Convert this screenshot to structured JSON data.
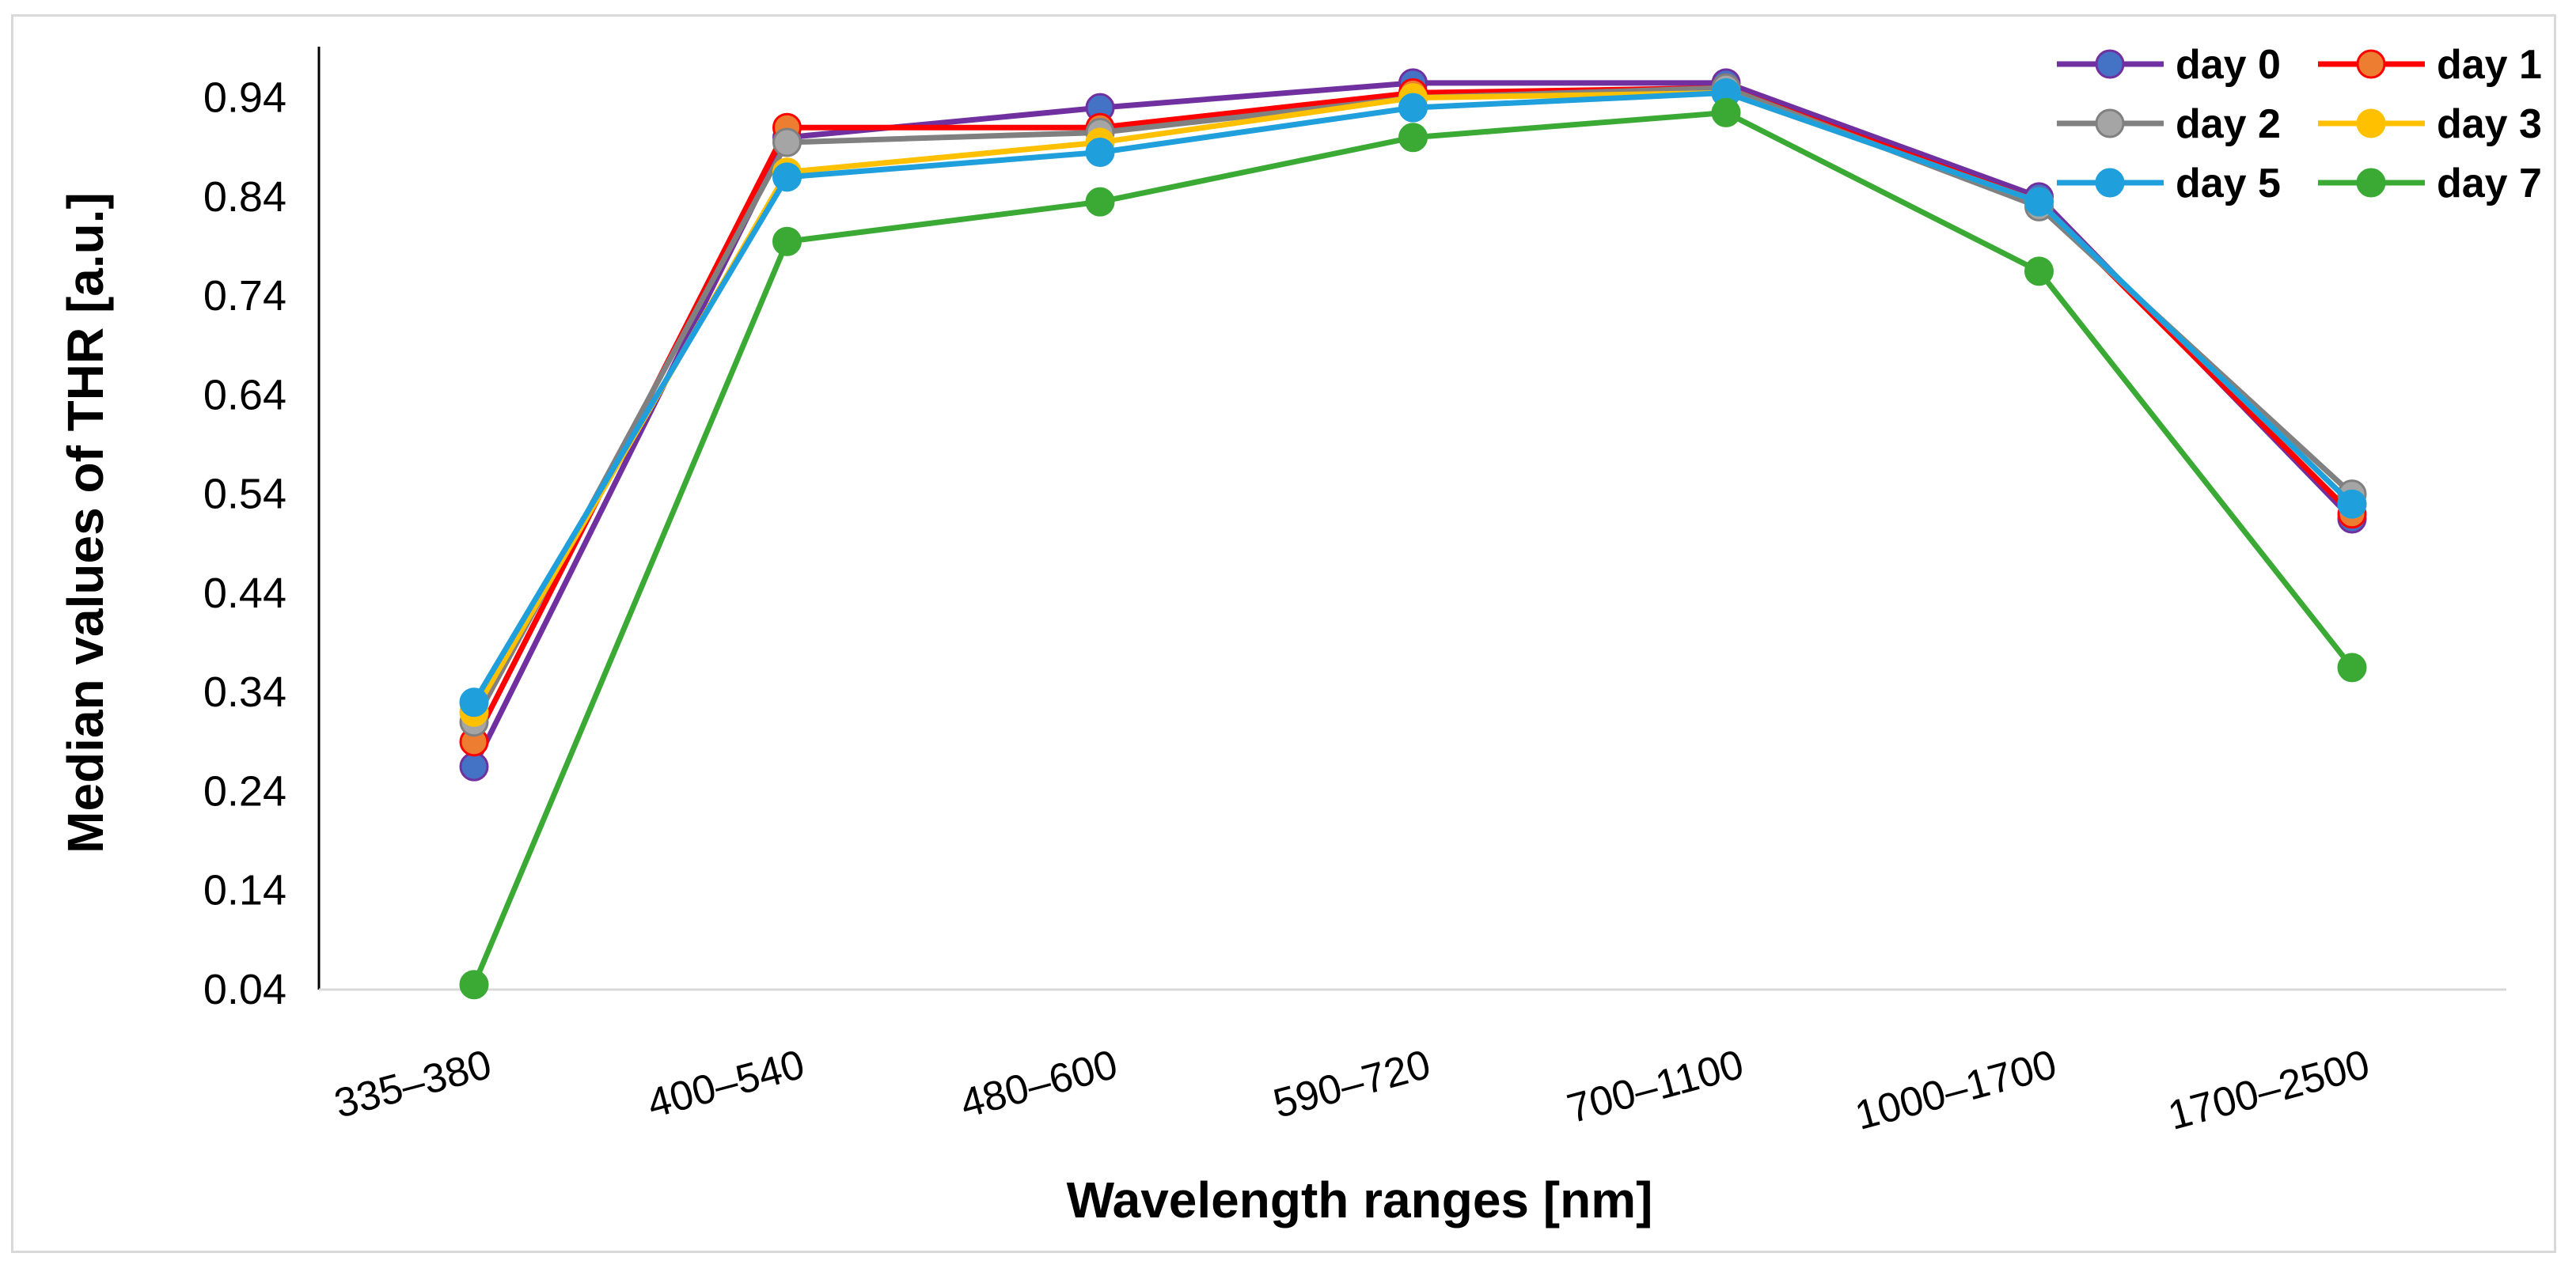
{
  "chart_data": {
    "type": "line",
    "title": "",
    "xlabel": "Wavelength ranges [nm]",
    "ylabel": "Median values of THR [a.u.]",
    "categories": [
      "335–380",
      "400–540",
      "480–600",
      "590–720",
      "700–1100",
      "1000–1700",
      "1700–2500"
    ],
    "y_ticks": [
      "0.04",
      "0.14",
      "0.24",
      "0.34",
      "0.44",
      "0.54",
      "0.64",
      "0.74",
      "0.84",
      "0.94"
    ],
    "ylim": [
      0.04,
      0.99
    ],
    "grid": false,
    "legend_position": "top-right",
    "series": [
      {
        "name": "day 0",
        "color": "#7030a0",
        "marker_color": "#4472c4",
        "values": [
          0.265,
          0.9,
          0.93,
          0.955,
          0.955,
          0.84,
          0.515
        ]
      },
      {
        "name": "day 1",
        "color": "#ff0000",
        "marker_color": "#ed7d31",
        "values": [
          0.29,
          0.91,
          0.91,
          0.945,
          0.95,
          0.835,
          0.52
        ]
      },
      {
        "name": "day 2",
        "color": "#808080",
        "marker_color": "#a5a5a5",
        "values": [
          0.31,
          0.895,
          0.905,
          0.94,
          0.95,
          0.83,
          0.54
        ]
      },
      {
        "name": "day 3",
        "color": "#ffc000",
        "marker_color": "#ffc000",
        "values": [
          0.32,
          0.865,
          0.895,
          0.94,
          0.945,
          0.835,
          0.53
        ]
      },
      {
        "name": "day 5",
        "color": "#1f9fdc",
        "marker_color": "#1f9fdc",
        "values": [
          0.33,
          0.86,
          0.885,
          0.93,
          0.945,
          0.835,
          0.53
        ]
      },
      {
        "name": "day 7",
        "color": "#3aaa35",
        "marker_color": "#3aaa35",
        "values": [
          0.045,
          0.795,
          0.835,
          0.9,
          0.925,
          0.765,
          0.365
        ]
      }
    ]
  }
}
